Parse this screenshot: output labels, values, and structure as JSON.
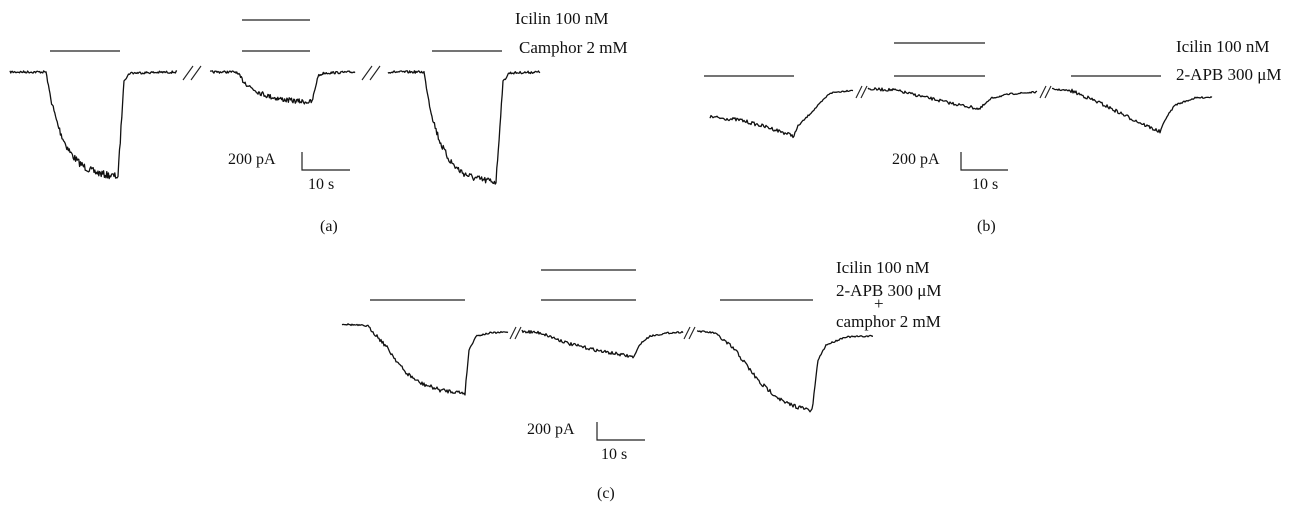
{
  "panels": {
    "a": {
      "caption": "(a)",
      "legend": [
        "Icilin 100 nM",
        "Camphor 2 mM"
      ],
      "scale": {
        "current": "200 pA",
        "time": "10 s"
      }
    },
    "b": {
      "caption": "(b)",
      "legend": [
        "Icilin 100 nM",
        "2-APB 300 μM"
      ],
      "scale": {
        "current": "200 pA",
        "time": "10 s"
      }
    },
    "c": {
      "caption": "(c)",
      "legend": [
        "Icilin 100 nM",
        "2-APB 300 μM",
        "+",
        "camphor 2 mM"
      ],
      "scale": {
        "current": "200 pA",
        "time": "10 s"
      }
    }
  },
  "colors": {
    "trace": "#111111",
    "background": "#ffffff"
  }
}
